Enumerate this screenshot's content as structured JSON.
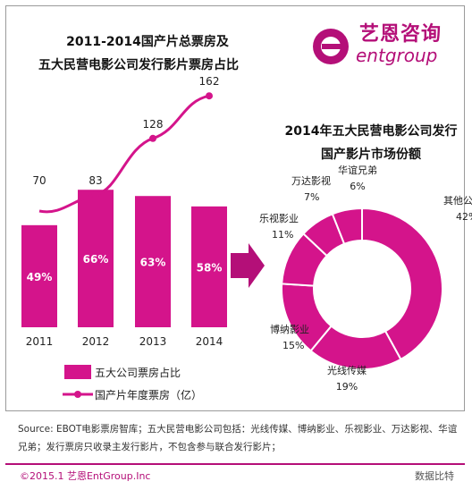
{
  "left_title": {
    "line1": "2011-2014国产片总票房及",
    "line2": "五大民营电影公司发行影片票房占比"
  },
  "right_title": {
    "line1": "2014年五大民营电影公司发行",
    "line2": "国产影片市场份额"
  },
  "logo": {
    "cn": "艺恩咨询",
    "en": "entgroup",
    "color": "#b40f78"
  },
  "colors": {
    "accent": "#b40f78",
    "bar": "#d4148b",
    "donut": "#d4148b"
  },
  "chart_data": [
    {
      "type": "bar",
      "categories": [
        "2011",
        "2012",
        "2013",
        "2014"
      ],
      "series": [
        {
          "name": "五大公司票房占比",
          "values": [
            49,
            66,
            63,
            58
          ],
          "labels": [
            "49%",
            "66%",
            "63%",
            "58%"
          ]
        },
        {
          "name": "国产片年度票房（亿）",
          "values": [
            70,
            83,
            128,
            162
          ]
        }
      ],
      "legend": "bottom"
    },
    {
      "type": "pie",
      "categories": [
        "其他公司",
        "光线传媒",
        "博纳影业",
        "乐视影业",
        "万达影视",
        "华谊兄弟"
      ],
      "values": [
        42,
        19,
        15,
        11,
        7,
        6
      ],
      "labels": [
        "42%",
        "19%",
        "15%",
        "11%",
        "7%",
        "6%"
      ]
    }
  ],
  "source": "Source: EBOT电影票房智库；五大民营电影公司包括：光线传媒、博纳影业、乐视影业、万达影视、华谊兄弟；发行票房只收录主发行影片，不包含参与联合发行影片；",
  "copyright": "©2015.1 艺恩EntGroup.Inc",
  "watermark": "数据比特"
}
